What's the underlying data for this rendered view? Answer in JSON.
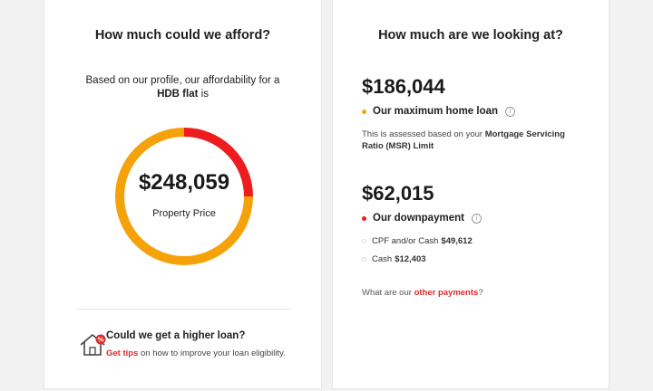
{
  "left": {
    "title": "How much could we afford?",
    "intro_prefix": "Based on our profile, our affordability for a",
    "intro_bold": "HDB flat",
    "intro_suffix": " is",
    "property_price": "$248,059",
    "property_label": "Property Price",
    "tip_title": "Could we get a higher loan?",
    "tip_link": "Get tips",
    "tip_text": " on how to improve your loan eligibility."
  },
  "donut": {
    "segments": [
      {
        "fraction": 0.25,
        "color": "#ee1c1c"
      },
      {
        "fraction": 0.75,
        "color": "#f5a20a"
      }
    ]
  },
  "right": {
    "title": "How much are we looking at?",
    "loan_amount": "$186,044",
    "loan_label": "Our maximum home loan",
    "loan_dot_color": "#f5a20a",
    "msr_prefix": "This is assessed based on your ",
    "msr_bold": "Mortgage Servicing Ratio (MSR) Limit",
    "down_amount": "$62,015",
    "down_label": "Our downpayment",
    "down_dot_color": "#ee1c1c",
    "cpf_label": "CPF and/or Cash",
    "cpf_value": "$49,612",
    "cash_label": "Cash",
    "cash_value": "$12,403",
    "other_prefix": "What are our ",
    "other_link": "other payments",
    "other_suffix": "?"
  },
  "icons": {
    "info": "info-circle-icon",
    "house": "house-percent-icon"
  },
  "colors": {
    "accent_red": "#e02a2a",
    "donut_orange": "#f5a20a",
    "donut_red": "#ee1c1c"
  }
}
